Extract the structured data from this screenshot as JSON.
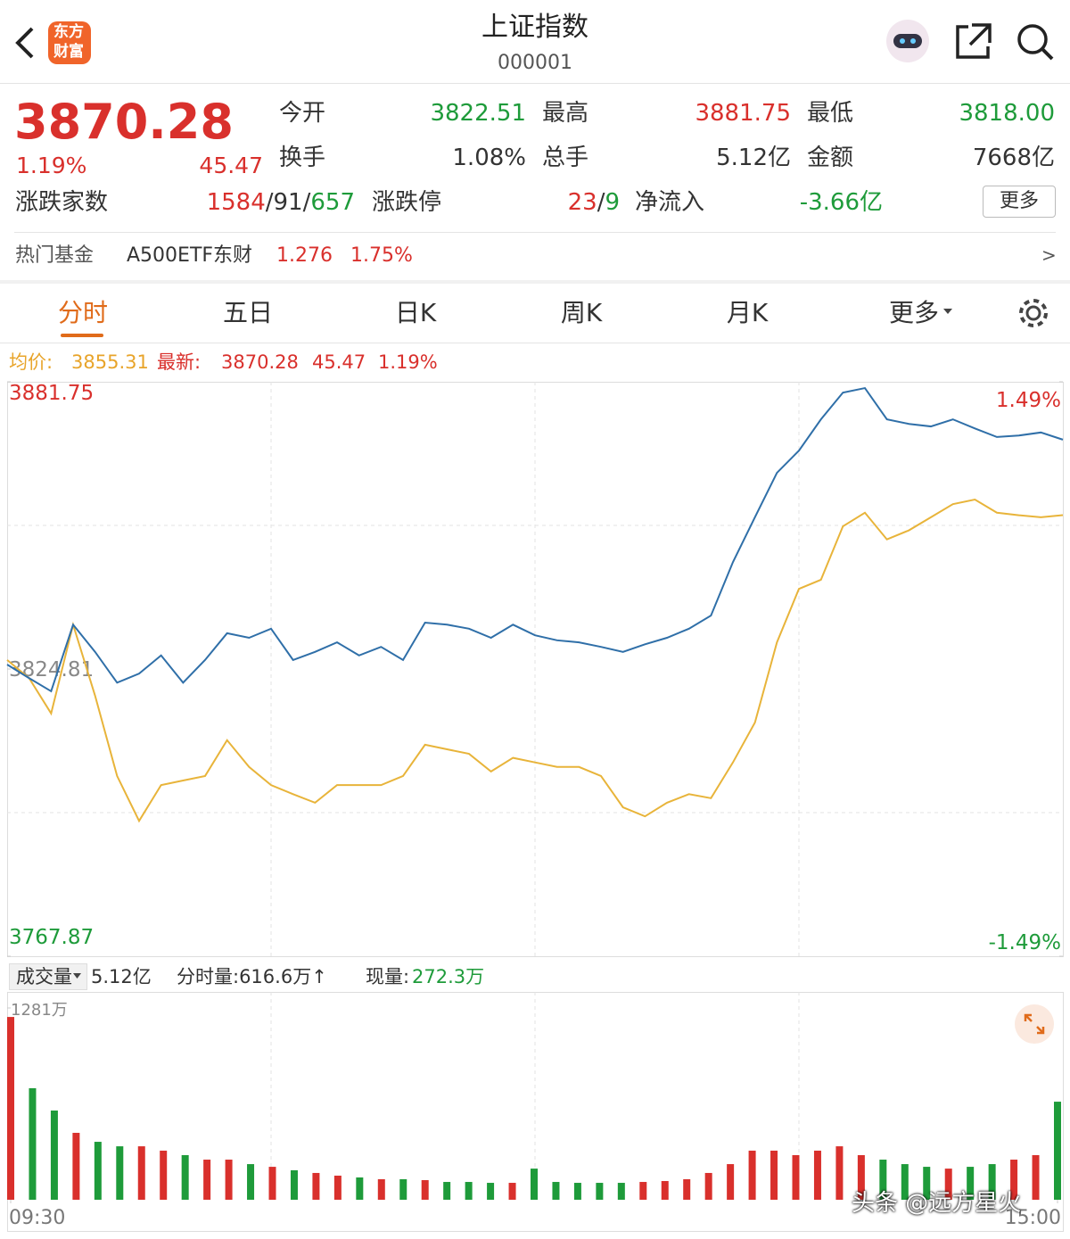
{
  "header": {
    "logo_top": "东方",
    "logo_bottom": "财富",
    "title": "上证指数",
    "code": "000001"
  },
  "quote": {
    "change_pct": "1.19%",
    "change": "45.47",
    "stats": [
      {
        "label": "今开",
        "value": "3822.51"
      },
      {
        "label": "最高",
        "value": "3881.75"
      },
      {
        "label": "最低",
        "value": "3818.00"
      },
      {
        "label": "换手",
        "value": "1.08%"
      },
      {
        "label": "总手",
        "value": "5.12亿"
      },
      {
        "label": "金额",
        "value": "7668亿"
      }
    ],
    "breadth": {
      "label": "涨跌家数",
      "up": "1584",
      "sep": "/",
      "flat": "91",
      "down": "657"
    },
    "limits": {
      "label": "涨跌停",
      "up": "23",
      "down": "9"
    },
    "inflow": {
      "label": "净流入",
      "value": "-3.66亿"
    },
    "more": "更多"
  },
  "fund": {
    "label": "热门基金",
    "name": "A500ETF东财",
    "price": "1.276",
    "pct": "1.75%",
    "arrow": ">"
  },
  "tabs": [
    "分时",
    "五日",
    "日K",
    "周K",
    "月K",
    "更多"
  ],
  "legend": {
    "avg_label": "均价:",
    "last_label": "最新:"
  },
  "volume_bar": {
    "label": "成交量",
    "total": "5.12亿",
    "minute": "分时量:616.6万",
    "arrow": "↑",
    "current_label": "现量:",
    "current": "272.3万"
  },
  "watermark": "头条 @远方星火",
  "chart_data": [
    {
      "type": "line",
      "x": [
        0,
        5,
        10,
        15,
        20,
        25,
        30,
        35,
        40,
        45,
        50,
        55,
        60,
        65,
        70,
        75,
        80,
        85,
        90,
        95,
        100,
        105,
        110,
        115,
        120,
        125,
        130,
        135,
        140,
        145,
        150,
        155,
        160,
        165,
        170,
        175,
        180,
        185,
        190,
        195,
        200,
        205,
        210,
        215,
        220,
        225,
        230,
        235,
        240
      ],
      "xlim": [
        0,
        240
      ],
      "series": [
        {
          "name": "均价:",
          "color": "#e8b43a",
          "values": [
            3826.6,
            3823.0,
            3816.0,
            3833.6,
            3819.5,
            3803.6,
            3794.7,
            3801.8,
            3802.7,
            3803.6,
            3810.7,
            3805.4,
            3801.8,
            3800.0,
            3798.3,
            3801.8,
            3801.8,
            3801.8,
            3803.6,
            3809.8,
            3808.9,
            3808.0,
            3804.5,
            3807.2,
            3806.3,
            3805.4,
            3805.4,
            3803.6,
            3797.4,
            3795.6,
            3798.3,
            3800.0,
            3799.2,
            3806.3,
            3814.2,
            3830.1,
            3840.7,
            3842.5,
            3853.1,
            3855.8,
            3850.5,
            3852.3,
            3854.9,
            3857.5,
            3858.4,
            3855.8,
            3855.3,
            3854.9,
            3855.31
          ]
        },
        {
          "name": "最新:",
          "color": "#2f6fa8",
          "values": [
            3825.7,
            3823.0,
            3820.4,
            3833.6,
            3828.2,
            3822.1,
            3823.9,
            3827.5,
            3822.1,
            3826.6,
            3831.9,
            3831.0,
            3832.8,
            3826.6,
            3828.2,
            3830.1,
            3827.5,
            3829.2,
            3826.6,
            3834.0,
            3833.6,
            3832.8,
            3831.0,
            3833.6,
            3831.5,
            3830.5,
            3830.1,
            3829.2,
            3828.2,
            3829.7,
            3831.0,
            3832.8,
            3835.4,
            3846.0,
            3854.9,
            3863.7,
            3868.1,
            3874.3,
            3879.6,
            3880.5,
            3874.3,
            3873.4,
            3872.9,
            3874.3,
            3872.5,
            3870.8,
            3871.1,
            3871.7,
            3870.28
          ]
        }
      ],
      "ylim": [
        3767.87,
        3881.75
      ],
      "yticks": [
        3767.87,
        3824.81,
        3881.75
      ],
      "y2lim": [
        -1.49,
        1.49
      ],
      "y2ticks": [
        {
          "value": -1.49,
          "label": "-1.49%"
        },
        {
          "value": 1.49,
          "label": "1.49%"
        }
      ]
    },
    {
      "type": "bar",
      "x": [
        0,
        5,
        10,
        15,
        20,
        25,
        30,
        35,
        40,
        45,
        50,
        55,
        60,
        65,
        70,
        75,
        80,
        85,
        90,
        95,
        100,
        105,
        110,
        115,
        120,
        125,
        130,
        135,
        140,
        145,
        150,
        155,
        160,
        165,
        170,
        175,
        180,
        185,
        190,
        195,
        200,
        205,
        210,
        215,
        220,
        225,
        230,
        235,
        240
      ],
      "xlim": [
        0,
        240
      ],
      "xticks": [
        {
          "value": 0,
          "label": "09:30"
        },
        {
          "value": 240,
          "label": "15:00"
        }
      ],
      "values": [
        1221,
        745,
        596,
        447,
        387,
        357,
        357,
        328,
        298,
        268,
        268,
        238,
        220,
        197,
        179,
        161,
        149,
        137,
        137,
        131,
        119,
        119,
        113,
        113,
        208,
        119,
        113,
        113,
        113,
        119,
        125,
        137,
        179,
        238,
        328,
        328,
        298,
        328,
        357,
        298,
        268,
        238,
        220,
        208,
        220,
        238,
        268,
        298,
        655
      ],
      "up_color": "#d9302c",
      "down_color": "#1e9b3a",
      "ylim": [
        0,
        1281
      ],
      "yticks": [
        {
          "value": 1281,
          "label": "1281万"
        }
      ]
    }
  ]
}
